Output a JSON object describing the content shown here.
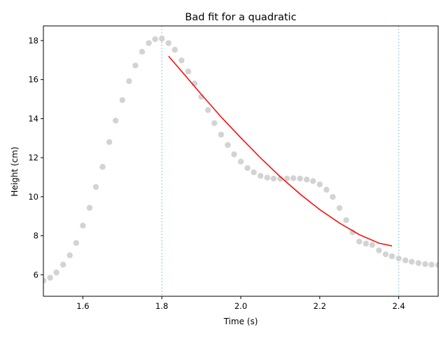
{
  "chart_data": {
    "type": "scatter",
    "title": "Bad fit for a quadratic",
    "xlabel": "Time (s)",
    "ylabel": "Height (cm)",
    "xlim": [
      1.5,
      2.5
    ],
    "ylim": [
      4.9,
      18.75
    ],
    "xticks": [
      1.6,
      1.8,
      2.0,
      2.2,
      2.4
    ],
    "xtick_labels": [
      "1.6",
      "1.8",
      "2.0",
      "2.2",
      "2.4"
    ],
    "yticks": [
      6,
      8,
      10,
      12,
      14,
      16,
      18
    ],
    "ytick_labels": [
      "6",
      "8",
      "10",
      "12",
      "14",
      "16",
      "18"
    ],
    "grid": false,
    "vlines": [
      1.8,
      2.4
    ],
    "colors": {
      "points": "#d3d3d3",
      "fit": "#ff0000",
      "vlines": "#87ceeb"
    },
    "series": [
      {
        "kind": "scatter",
        "x": [
          1.5,
          1.517,
          1.533,
          1.55,
          1.567,
          1.583,
          1.6,
          1.617,
          1.633,
          1.65,
          1.667,
          1.683,
          1.7,
          1.717,
          1.733,
          1.75,
          1.767,
          1.783,
          1.8,
          1.817,
          1.833,
          1.85,
          1.867,
          1.883,
          1.9,
          1.917,
          1.933,
          1.95,
          1.967,
          1.983,
          2.0,
          2.017,
          2.033,
          2.05,
          2.067,
          2.083,
          2.1,
          2.117,
          2.133,
          2.15,
          2.167,
          2.183,
          2.2,
          2.217,
          2.233,
          2.25,
          2.267,
          2.283,
          2.3,
          2.317,
          2.333,
          2.35,
          2.367,
          2.383,
          2.4,
          2.417,
          2.433,
          2.45,
          2.467,
          2.483,
          2.5
        ],
        "y": [
          5.7,
          5.85,
          6.12,
          6.52,
          7.0,
          7.63,
          8.52,
          9.43,
          10.5,
          11.53,
          12.8,
          13.9,
          14.95,
          15.92,
          16.72,
          17.43,
          17.87,
          18.07,
          18.1,
          17.87,
          17.53,
          16.98,
          16.42,
          15.8,
          15.12,
          14.44,
          13.77,
          13.18,
          12.65,
          12.17,
          11.8,
          11.47,
          11.25,
          11.07,
          10.98,
          10.93,
          10.92,
          10.93,
          10.95,
          10.93,
          10.88,
          10.8,
          10.63,
          10.36,
          9.99,
          9.42,
          8.8,
          8.18,
          7.7,
          7.6,
          7.53,
          7.25,
          7.05,
          6.95,
          6.84,
          6.74,
          6.67,
          6.6,
          6.55,
          6.52,
          6.5
        ]
      },
      {
        "kind": "fit-line",
        "x": [
          1.817,
          1.85,
          1.9,
          1.95,
          2.0,
          2.05,
          2.1,
          2.15,
          2.2,
          2.25,
          2.3,
          2.35,
          2.383
        ],
        "y": [
          17.2,
          16.43,
          15.24,
          14.09,
          13.02,
          11.99,
          11.02,
          10.14,
          9.34,
          8.65,
          8.06,
          7.62,
          7.48
        ]
      }
    ]
  }
}
